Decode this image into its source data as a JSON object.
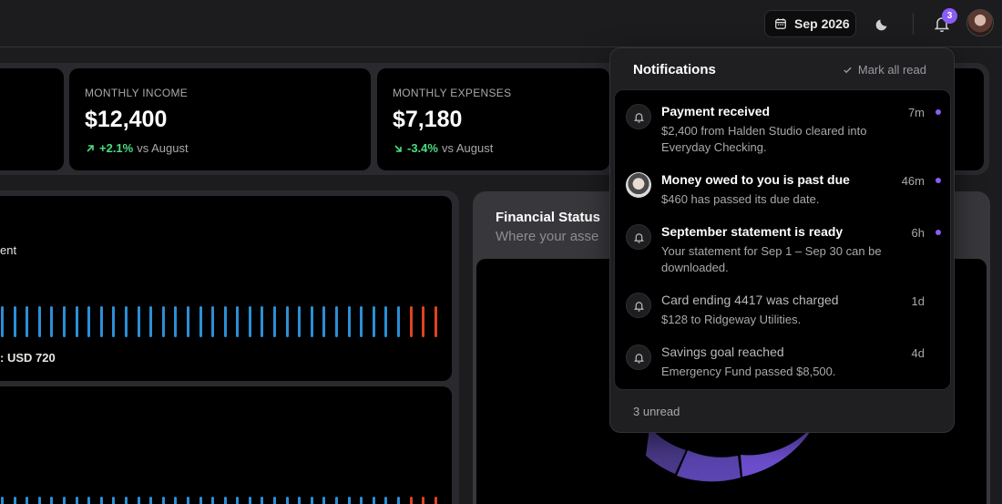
{
  "header": {
    "date_label": "Sep 2026",
    "notification_count": "3",
    "accent": "#8b5cf6"
  },
  "stats": [
    {
      "label": "MONTHLY INCOME",
      "value": "$12,400",
      "delta": "+2.1%",
      "delta_suffix": "vs August",
      "direction": "up",
      "color": "#4ade80"
    },
    {
      "label": "MONTHLY EXPENSES",
      "value": "$7,180",
      "delta": "-3.4%",
      "delta_suffix": "vs August",
      "direction": "down",
      "color": "#4ade80"
    }
  ],
  "left_panel": {
    "legend_partial": "ent",
    "value_partial": ":  USD 720",
    "bar_colors": {
      "normal": "#2b8fd6",
      "alert": "#e0431f"
    }
  },
  "financial_status": {
    "title": "Financial Status",
    "subtitle": "Where your asse"
  },
  "notifications": {
    "title": "Notifications",
    "mark_all_read": "Mark all read",
    "footer": "3 unread",
    "items": [
      {
        "title": "Payment received",
        "body": "$2,400 from Halden Studio cleared into Everyday Checking.",
        "time": "7m",
        "unread": true,
        "icon": "bell-icon"
      },
      {
        "title": "Money owed to you is past due",
        "body": "$460 has passed its due date.",
        "time": "46m",
        "unread": true,
        "icon": "user-photo"
      },
      {
        "title": "September statement is ready",
        "body": "Your statement for Sep 1 – Sep 30 can be downloaded.",
        "time": "6h",
        "unread": true,
        "icon": "bell-icon"
      },
      {
        "title": "Card ending 4417 was charged",
        "body": "$128 to Ridgeway Utilities.",
        "time": "1d",
        "unread": false,
        "icon": "bell-icon"
      },
      {
        "title": "Savings goal reached",
        "body": "Emergency Fund passed $8,500.",
        "time": "4d",
        "unread": false,
        "icon": "bell-icon"
      }
    ]
  }
}
